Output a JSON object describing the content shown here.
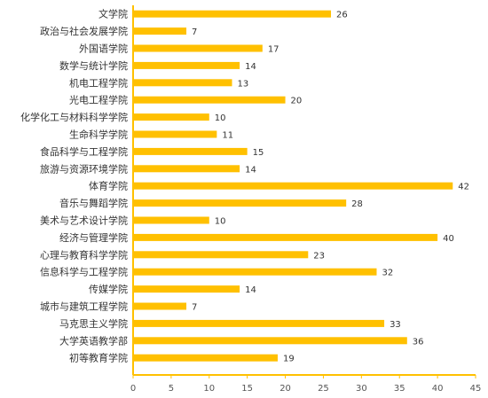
{
  "chart_data": {
    "type": "bar",
    "orientation": "horizontal",
    "categories": [
      "文学院",
      "政治与社会发展学院",
      "外国语学院",
      "数学与统计学院",
      "机电工程学院",
      "光电工程学院",
      "化学化工与材料科学学院",
      "生命科学学院",
      "食品科学与工程学院",
      "旅游与资源环境学院",
      "体育学院",
      "音乐与舞蹈学院",
      "美术与艺术设计学院",
      "经济与管理学院",
      "心理与教育科学学院",
      "信息科学与工程学院",
      "传媒学院",
      "城市与建筑工程学院",
      "马克思主义学院",
      "大学英语教学部",
      "初等教育学院"
    ],
    "values": [
      26,
      7,
      17,
      14,
      13,
      20,
      10,
      11,
      15,
      14,
      42,
      28,
      10,
      40,
      23,
      32,
      14,
      7,
      33,
      36,
      19
    ],
    "xlim": [
      0,
      45
    ],
    "xticks": [
      0,
      5,
      10,
      15,
      20,
      25,
      30,
      35,
      40,
      45
    ],
    "title": "",
    "xlabel": "",
    "ylabel": "",
    "grid": false,
    "data_labels": true,
    "colors": {
      "bar": "#FFC000",
      "axis": "#FFC000",
      "text": "#333333"
    }
  }
}
